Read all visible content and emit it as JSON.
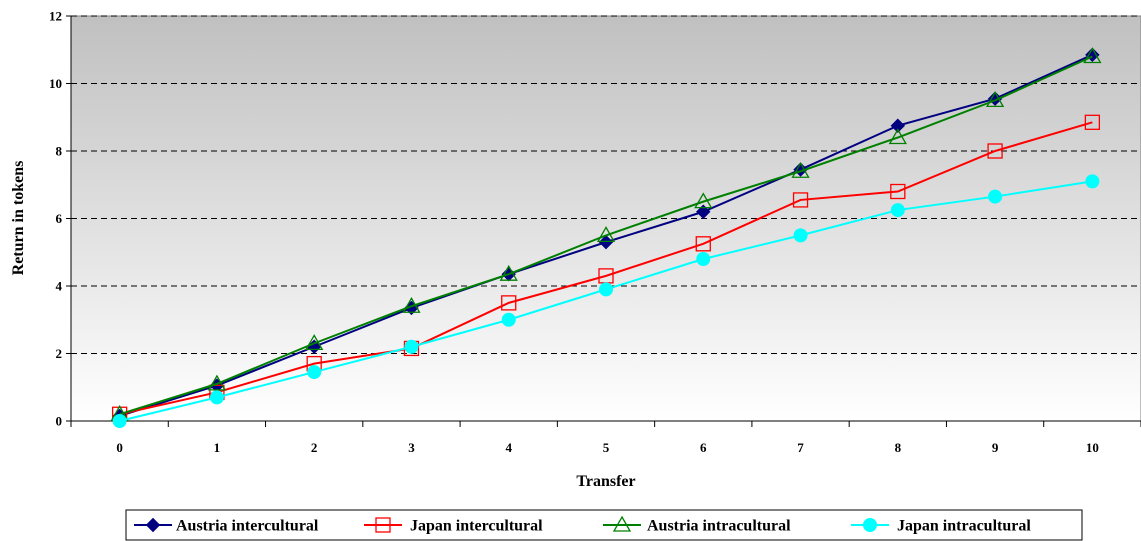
{
  "chart_data": {
    "type": "line",
    "xlabel": "Transfer",
    "ylabel": "Return in tokens",
    "x": [
      0,
      1,
      2,
      3,
      4,
      5,
      6,
      7,
      8,
      9,
      10
    ],
    "xlim": [
      0,
      10
    ],
    "ylim": [
      0,
      12
    ],
    "yticks": [
      0,
      2,
      4,
      6,
      8,
      10,
      12
    ],
    "grid": "horizontal dashed",
    "background": "gradient gray to white",
    "legend_position": "bottom",
    "series": [
      {
        "name": "Austria intercultural",
        "color": "#000080",
        "marker": "filled-diamond",
        "values": [
          0.15,
          1.05,
          2.2,
          3.35,
          4.35,
          5.3,
          6.2,
          7.45,
          8.75,
          9.55,
          10.85
        ]
      },
      {
        "name": "Japan intercultural",
        "color": "#ff0000",
        "marker": "open-square",
        "values": [
          0.2,
          0.85,
          1.7,
          2.15,
          3.5,
          4.3,
          5.25,
          6.55,
          6.8,
          8.0,
          8.85
        ]
      },
      {
        "name": "Austria intracultural",
        "color": "#008000",
        "marker": "open-triangle",
        "values": [
          0.2,
          1.1,
          2.3,
          3.4,
          4.35,
          5.5,
          6.5,
          7.4,
          8.4,
          9.5,
          10.8
        ]
      },
      {
        "name": "Japan intracultural",
        "color": "#00ffff",
        "marker": "filled-circle",
        "values": [
          0.0,
          0.7,
          1.45,
          2.2,
          3.0,
          3.9,
          4.8,
          5.5,
          6.25,
          6.65,
          7.1
        ]
      }
    ]
  }
}
